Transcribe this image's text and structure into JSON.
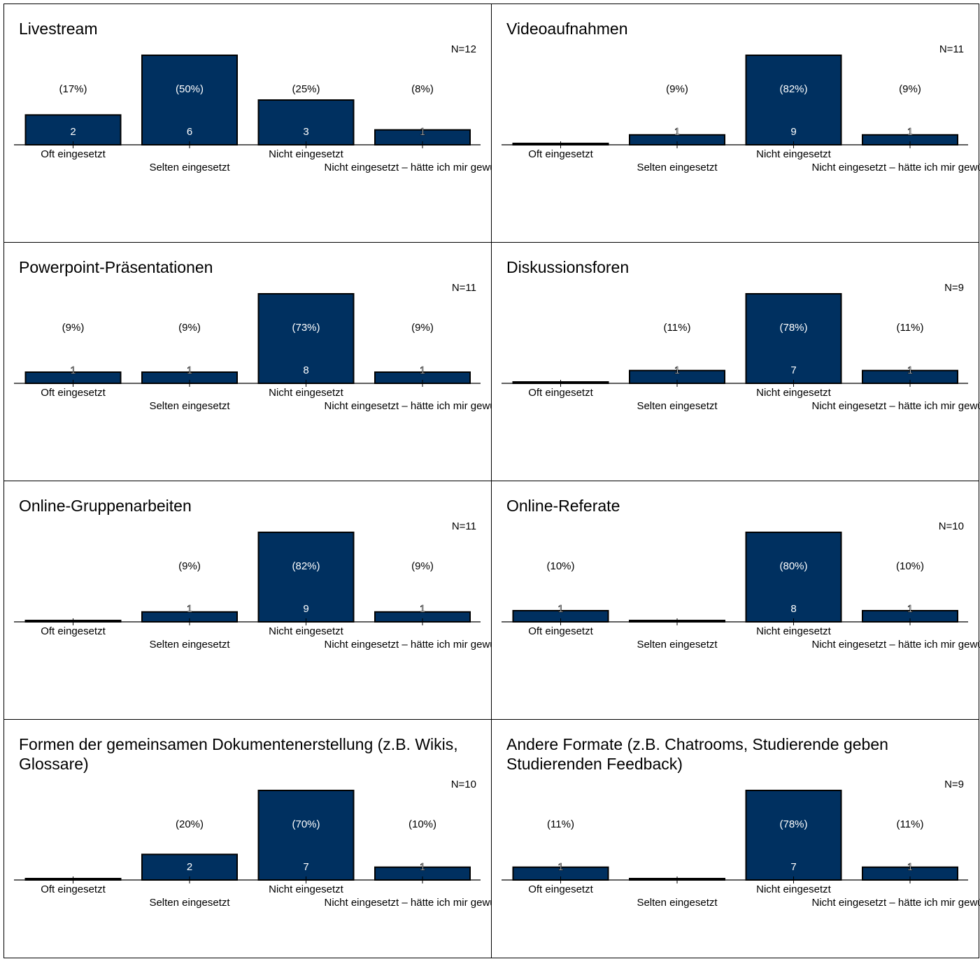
{
  "chart_data": [
    {
      "type": "bar",
      "title": "Livestream",
      "n_label": "N=12",
      "categories": [
        "Oft eingesetzt",
        "Selten eingesetzt",
        "Nicht eingesetzt",
        "Nicht eingesetzt – hätte ich mir gewünscht"
      ],
      "values": [
        2,
        6,
        3,
        1
      ],
      "percent_labels": [
        "(17%)",
        "(50%)",
        "(25%)",
        "(8%)"
      ],
      "grid": false
    },
    {
      "type": "bar",
      "title": "Videoaufnahmen",
      "n_label": "N=11",
      "categories": [
        "Oft eingesetzt",
        "Selten eingesetzt",
        "Nicht eingesetzt",
        "Nicht eingesetzt – hätte ich mir gewünscht"
      ],
      "values": [
        0,
        1,
        9,
        1
      ],
      "percent_labels": [
        "",
        "(9%)",
        "(82%)",
        "(9%)"
      ],
      "grid": false
    },
    {
      "type": "bar",
      "title": "Powerpoint-Präsentationen",
      "n_label": "N=11",
      "categories": [
        "Oft eingesetzt",
        "Selten eingesetzt",
        "Nicht eingesetzt",
        "Nicht eingesetzt – hätte ich mir gewünscht"
      ],
      "values": [
        1,
        1,
        8,
        1
      ],
      "percent_labels": [
        "(9%)",
        "(9%)",
        "(73%)",
        "(9%)"
      ],
      "grid": false
    },
    {
      "type": "bar",
      "title": "Diskussionsforen",
      "n_label": "N=9",
      "categories": [
        "Oft eingesetzt",
        "Selten eingesetzt",
        "Nicht eingesetzt",
        "Nicht eingesetzt – hätte ich mir gewünscht"
      ],
      "values": [
        0,
        1,
        7,
        1
      ],
      "percent_labels": [
        "",
        "(11%)",
        "(78%)",
        "(11%)"
      ],
      "grid": false
    },
    {
      "type": "bar",
      "title": "Online-Gruppenarbeiten",
      "n_label": "N=11",
      "categories": [
        "Oft eingesetzt",
        "Selten eingesetzt",
        "Nicht eingesetzt",
        "Nicht eingesetzt – hätte ich mir gewünscht"
      ],
      "values": [
        0,
        1,
        9,
        1
      ],
      "percent_labels": [
        "",
        "(9%)",
        "(82%)",
        "(9%)"
      ],
      "grid": false
    },
    {
      "type": "bar",
      "title": "Online-Referate",
      "n_label": "N=10",
      "categories": [
        "Oft eingesetzt",
        "Selten eingesetzt",
        "Nicht eingesetzt",
        "Nicht eingesetzt – hätte ich mir gewünscht"
      ],
      "values": [
        1,
        0,
        8,
        1
      ],
      "percent_labels": [
        "(10%)",
        "",
        "(80%)",
        "(10%)"
      ],
      "grid": false
    },
    {
      "type": "bar",
      "title": "Formen der gemeinsamen Dokumentenerstellung (z.B. Wikis, Glossare)",
      "n_label": "N=10",
      "categories": [
        "Oft eingesetzt",
        "Selten eingesetzt",
        "Nicht eingesetzt",
        "Nicht eingesetzt – hätte ich mir gewünscht"
      ],
      "values": [
        0,
        2,
        7,
        1
      ],
      "percent_labels": [
        "",
        "(20%)",
        "(70%)",
        "(10%)"
      ],
      "grid": false
    },
    {
      "type": "bar",
      "title": "Andere Formate (z.B. Chatrooms, Studierende geben Studierenden Feedback)",
      "n_label": "N=9",
      "categories": [
        "Oft eingesetzt",
        "Selten eingesetzt",
        "Nicht eingesetzt",
        "Nicht eingesetzt – hätte ich mir gewünscht"
      ],
      "values": [
        1,
        0,
        7,
        1
      ],
      "percent_labels": [
        "(11%)",
        "",
        "(78%)",
        "(11%)"
      ],
      "grid": false
    }
  ],
  "colors": {
    "bar": "#003060",
    "bar_border": "#000000",
    "value_label_inside": "#ffffff",
    "value_label_small": "#ffffff",
    "axis": "#000000"
  }
}
